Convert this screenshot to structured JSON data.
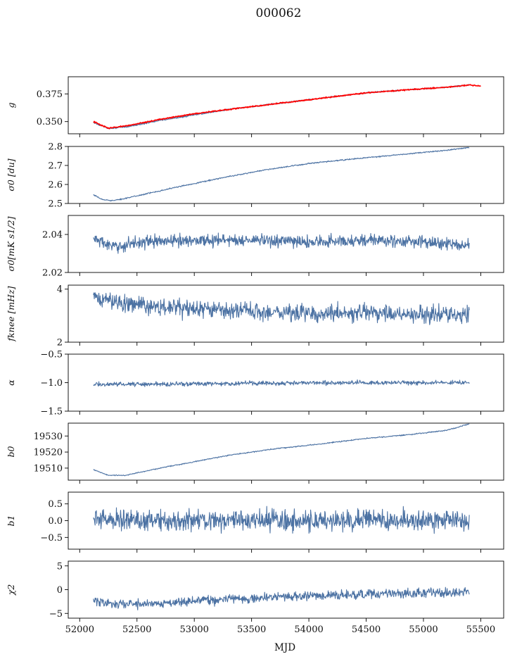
{
  "title": "000062",
  "colors": {
    "series": "#4c72a3",
    "overlay": "#ff0000"
  },
  "chart_data": {
    "type": "line",
    "title": "000062",
    "xlabel": "MJD",
    "xlim": [
      51900,
      55700
    ],
    "x_ticks": [
      "52000",
      "52500",
      "53000",
      "53500",
      "54000",
      "54500",
      "55000",
      "55500"
    ],
    "x_range_data": [
      52120,
      55400
    ],
    "grid": false,
    "panels": [
      {
        "ylabel": "g",
        "ylim": [
          0.339,
          0.3905
        ],
        "ytick_values": [
          0.35,
          0.375
        ],
        "yticks": [
          "0.350",
          "0.375"
        ],
        "series": [
          {
            "color": "#4c72a3",
            "x": [
              52120,
              52250,
              52400,
              52700,
              53000,
              53300,
              53700,
              54100,
              54500,
              54900,
              55200,
              55400
            ],
            "values": [
              0.349,
              0.344,
              0.345,
              0.351,
              0.356,
              0.361,
              0.366,
              0.371,
              0.376,
              0.379,
              0.381,
              0.383
            ],
            "noise": 0.0006
          },
          {
            "color": "#ff0000",
            "x": [
              52120,
              52250,
              52400,
              52700,
              53000,
              53300,
              53700,
              54100,
              54500,
              54900,
              55200,
              55400,
              55500
            ],
            "values": [
              0.35,
              0.344,
              0.346,
              0.352,
              0.357,
              0.361,
              0.366,
              0.371,
              0.376,
              0.379,
              0.381,
              0.383,
              0.382
            ],
            "noise": 0.0005
          }
        ]
      },
      {
        "ylabel": "σ0 [du]",
        "ylim": [
          2.5,
          2.8
        ],
        "ytick_values": [
          2.5,
          2.6,
          2.7,
          2.8
        ],
        "yticks": [
          "2.5",
          "2.6",
          "2.7",
          "2.8"
        ],
        "series": [
          {
            "color": "#4c72a3",
            "x": [
              52120,
              52200,
              52300,
              52500,
              52800,
              53200,
              53600,
              54000,
              54400,
              54800,
              55200,
              55400
            ],
            "values": [
              2.545,
              2.52,
              2.515,
              2.54,
              2.58,
              2.63,
              2.675,
              2.71,
              2.735,
              2.757,
              2.78,
              2.795
            ],
            "noise": 0.003
          }
        ]
      },
      {
        "ylabel": "σ0[mK s1/2]",
        "ylim": [
          2.02,
          2.05
        ],
        "ytick_values": [
          2.02,
          2.04
        ],
        "yticks": [
          "2.02",
          "2.04"
        ],
        "series": [
          {
            "color": "#4c72a3",
            "x": [
              52120,
              52300,
              52500,
              53000,
              53500,
              54000,
              54500,
              55000,
              55400
            ],
            "values": [
              2.038,
              2.033,
              2.036,
              2.037,
              2.037,
              2.036,
              2.037,
              2.036,
              2.034
            ],
            "noise": 0.003
          }
        ]
      },
      {
        "ylabel": "fknee [mHz]",
        "ylim": [
          2,
          4.15
        ],
        "ytick_values": [
          2,
          4
        ],
        "yticks": [
          "2",
          "4"
        ],
        "series": [
          {
            "color": "#4c72a3",
            "x": [
              52120,
              52300,
              52600,
              53000,
              53500,
              54000,
              54500,
              55000,
              55400
            ],
            "values": [
              3.65,
              3.55,
              3.35,
              3.25,
              3.15,
              3.1,
              3.1,
              3.05,
              3.05
            ],
            "noise": 0.3
          }
        ]
      },
      {
        "ylabel": "α",
        "ylim": [
          -1.5,
          -0.5
        ],
        "ytick_values": [
          -1.5,
          -1.0,
          -0.5
        ],
        "yticks": [
          "−1.5",
          "−1.0",
          "−0.5"
        ],
        "series": [
          {
            "color": "#4c72a3",
            "x": [
              52120,
              53000,
              54000,
              55000,
              55400
            ],
            "values": [
              -1.03,
              -1.02,
              -1.0,
              -1.0,
              -1.0
            ],
            "noise": 0.035
          }
        ]
      },
      {
        "ylabel": "b0",
        "ylim": [
          19502.5,
          19538
        ],
        "ytick_values": [
          19510,
          19520,
          19530
        ],
        "yticks": [
          "19510",
          "19520",
          "19530"
        ],
        "series": [
          {
            "color": "#4c72a3",
            "x": [
              52120,
              52250,
              52400,
              52700,
              53000,
              53300,
              53700,
              54100,
              54500,
              54900,
              55200,
              55400
            ],
            "values": [
              19509,
              19505.5,
              19505.5,
              19510,
              19514,
              19518,
              19522,
              19525,
              19528.5,
              19531,
              19533.5,
              19537.5
            ],
            "noise": 0.3
          }
        ]
      },
      {
        "ylabel": "b1",
        "ylim": [
          -0.85,
          0.85
        ],
        "ytick_values": [
          -0.5,
          0.0,
          0.5
        ],
        "yticks": [
          "−0.5",
          "0.0",
          "0.5"
        ],
        "series": [
          {
            "color": "#4c72a3",
            "x": [
              52120,
              53000,
              54000,
              55000,
              55400
            ],
            "values": [
              0.05,
              0.0,
              0.0,
              0.0,
              0.0
            ],
            "noise": 0.28
          }
        ]
      },
      {
        "ylabel": "χ2",
        "ylim": [
          -6,
          6
        ],
        "ytick_values": [
          -5,
          0,
          5
        ],
        "yticks": [
          "−5",
          "0",
          "5"
        ],
        "series": [
          {
            "color": "#4c72a3",
            "x": [
              52120,
              52300,
              52600,
              53000,
              53500,
              54000,
              54500,
              55000,
              55400
            ],
            "values": [
              -2.3,
              -3.0,
              -3.0,
              -2.3,
              -1.8,
              -1.3,
              -1.0,
              -0.7,
              -0.6
            ],
            "noise": 0.9
          }
        ]
      }
    ]
  }
}
